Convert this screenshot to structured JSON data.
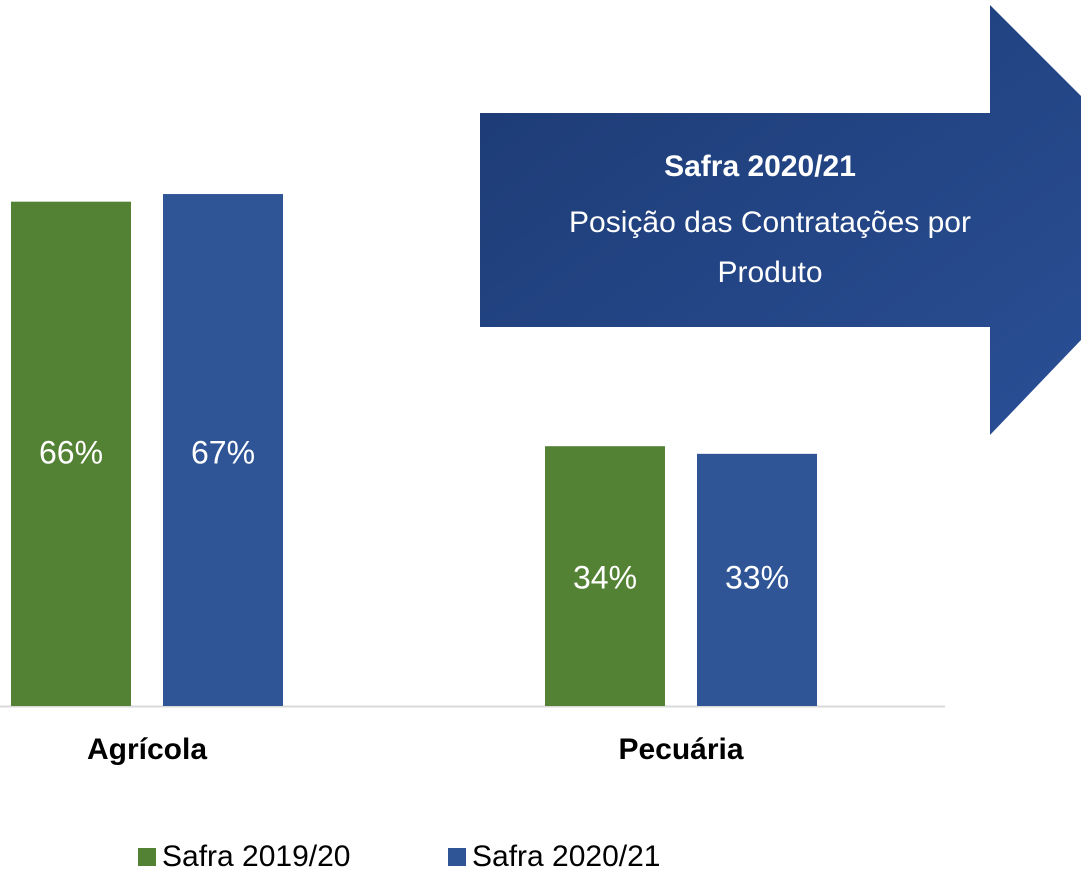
{
  "chart_data": {
    "type": "bar",
    "categories": [
      "Agrícola",
      "Pecuária"
    ],
    "series": [
      {
        "name": "Safra 2019/20",
        "color": "#548235",
        "values": [
          66,
          34
        ],
        "value_labels": [
          "66%",
          "34%"
        ]
      },
      {
        "name": "Safra 2020/21",
        "color": "#2f5597",
        "values": [
          67,
          33
        ],
        "value_labels": [
          "67%",
          "33%"
        ]
      }
    ],
    "ylim": [
      0,
      92
    ],
    "legend": "bottom",
    "annotation": {
      "title": "Safra 2020/21",
      "lines": [
        "Posição das Contratações por",
        "Produto"
      ]
    }
  }
}
